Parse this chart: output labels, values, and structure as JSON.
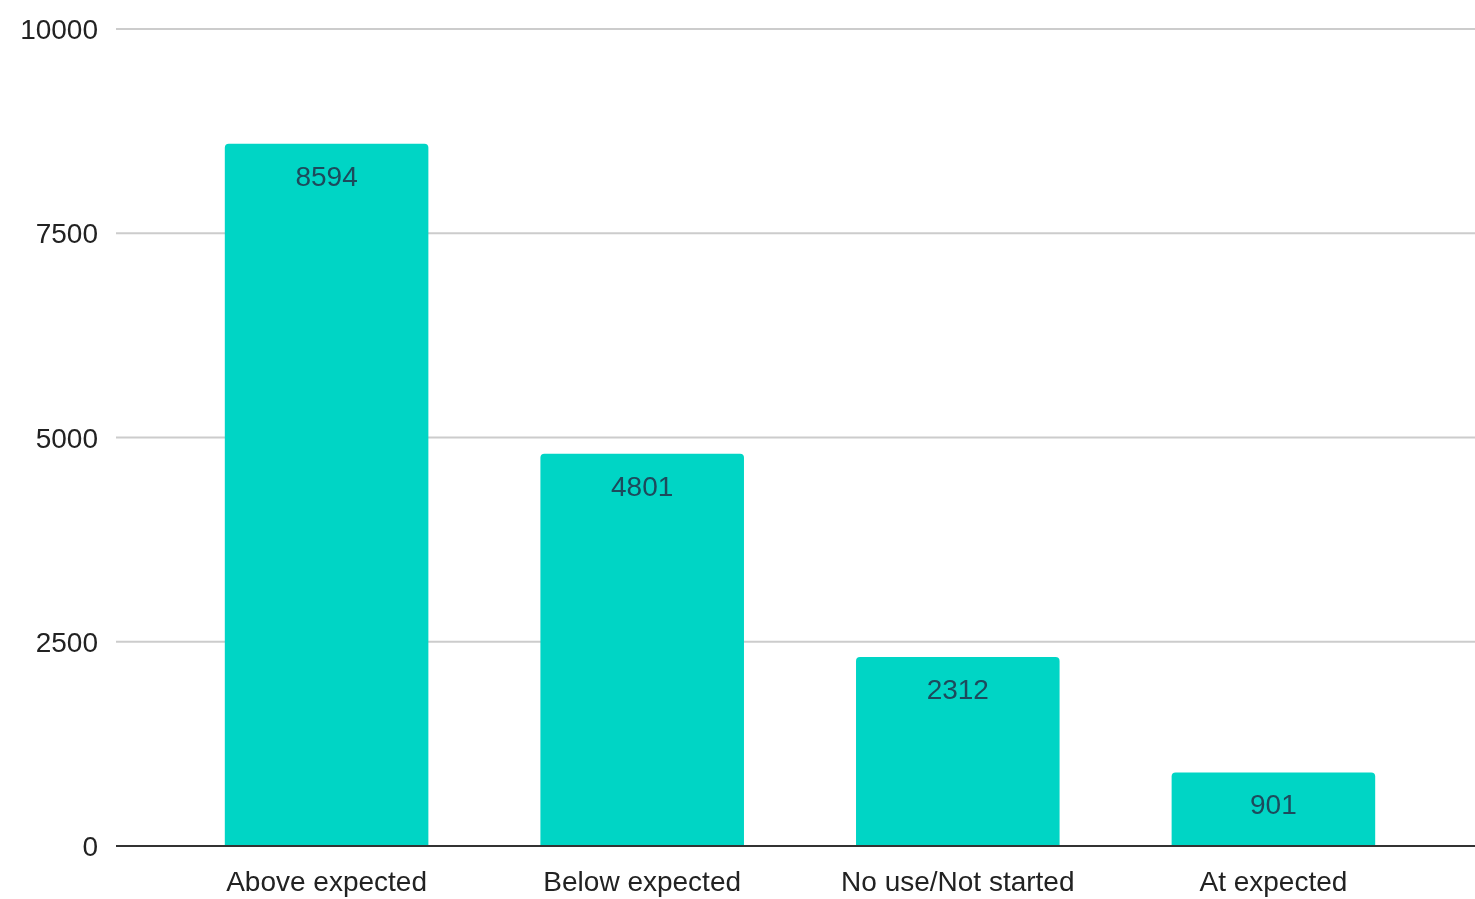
{
  "chart_data": {
    "type": "bar",
    "categories": [
      "Above expected",
      "Below expected",
      "No use/Not started",
      "At expected"
    ],
    "values": [
      8594,
      4801,
      2312,
      901
    ],
    "color": "#00d5c5",
    "ylim": [
      0,
      10000
    ],
    "yticks": [
      0,
      2500,
      5000,
      7500,
      10000
    ],
    "grid": "y",
    "data_labels": true
  }
}
